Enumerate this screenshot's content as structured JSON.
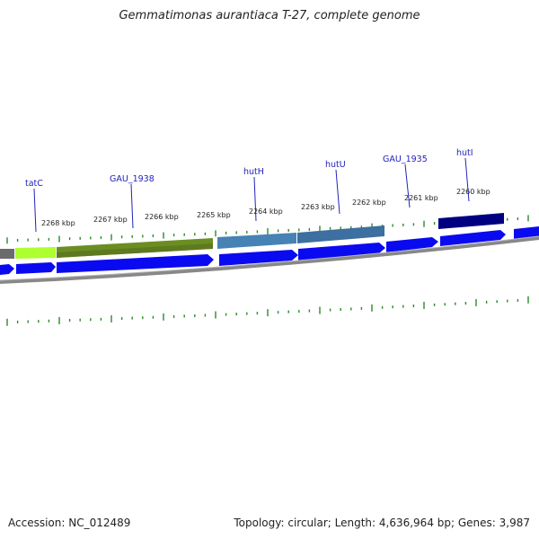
{
  "title": "Gemmatimonas aurantiaca T-27, complete genome",
  "footer": {
    "accession": "Accession: NC_012489",
    "summary": "Topology: circular; Length: 4,636,964 bp; Genes: 3,987"
  },
  "colors": {
    "tick": "#2a8a2a",
    "backbone": "#888888",
    "cds": "#0a0af0",
    "gene_label": "#2222bb"
  },
  "kbp_labels": [
    "2268 kbp",
    "2267 kbp",
    "2266 kbp",
    "2265 kbp",
    "2264 kbp",
    "2263 kbp",
    "2262 kbp",
    "2261 kbp",
    "2260 kbp"
  ],
  "gene_labels": [
    "tatC",
    "GAU_1938",
    "hutH",
    "hutU",
    "GAU_1935",
    "hutI"
  ]
}
